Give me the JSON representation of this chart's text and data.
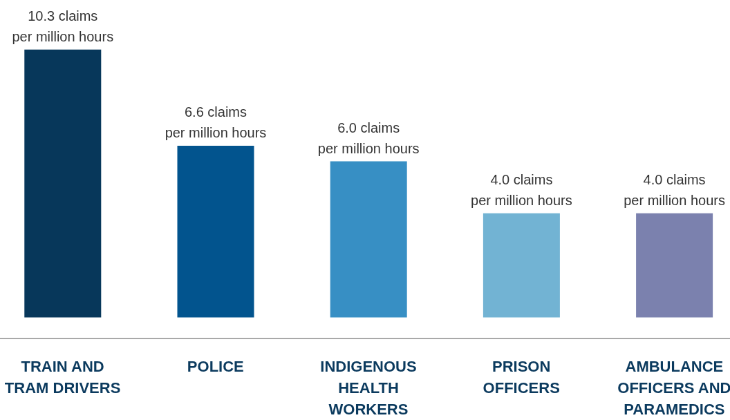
{
  "chart_data": {
    "type": "bar",
    "categories": [
      "TRAIN AND\nTRAM DRIVERS",
      "POLICE",
      "INDIGENOUS\nHEALTH\nWORKERS",
      "PRISON\nOFFICERS",
      "AMBULANCE\nOFFICERS AND\nPARAMEDICS"
    ],
    "values": [
      10.3,
      6.6,
      6.0,
      4.0,
      4.0
    ],
    "colors": [
      "#07375a",
      "#02548e",
      "#378fc4",
      "#72b3d3",
      "#7b81ae"
    ],
    "value_labels": [
      "10.3 claims\nper million hours",
      "6.6 claims\nper million hours",
      "6.0 claims\nper million hours",
      "4.0 claims\nper million hours",
      "4.0 claims\nper million hours"
    ],
    "grid": false,
    "legend": false
  }
}
